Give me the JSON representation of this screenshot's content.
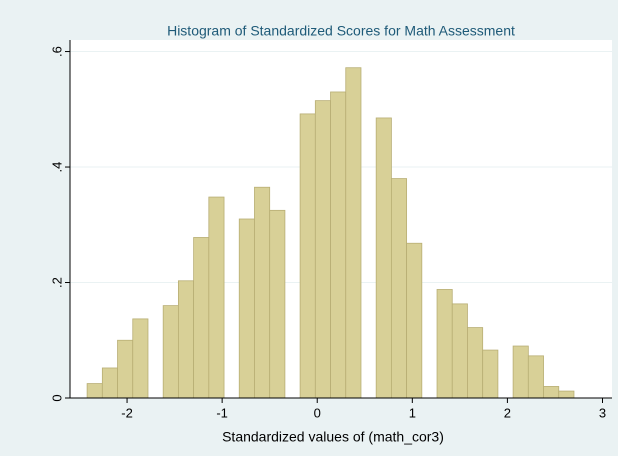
{
  "chart_data": {
    "type": "histogram",
    "title": "Histogram of Standardized Scores for Math Assessment",
    "x_label": "Standardized values of (math_cor3)",
    "bins": [
      -2.42,
      -2.26,
      -2.1,
      -1.94,
      -1.78,
      -1.62,
      -1.46,
      -1.3,
      -1.14,
      -0.98,
      -0.82,
      -0.66,
      -0.5,
      -0.34,
      -0.18,
      -0.02,
      0.14,
      0.3,
      0.46,
      0.62,
      0.78,
      0.94,
      1.1,
      1.26,
      1.42,
      1.58,
      1.74,
      1.9,
      2.06,
      2.22,
      2.38,
      2.54,
      2.7
    ],
    "values": [
      0.025,
      0.052,
      0.1,
      0.137,
      0,
      0.16,
      0.203,
      0.278,
      0.348,
      0,
      0.31,
      0.365,
      0.325,
      0,
      0.492,
      0.515,
      0.53,
      0.572,
      0,
      0.485,
      0.38,
      0.268,
      0,
      0.188,
      0.163,
      0.122,
      0.083,
      0,
      0.09,
      0.073,
      0.02,
      0.012
    ],
    "color": "#d8d097",
    "edge_color": "#b8ae74",
    "xlim": [
      -2.6,
      3.1
    ],
    "xticks": [
      -2,
      -1,
      0,
      1,
      2,
      3
    ],
    "ylim": [
      0,
      0.62
    ],
    "yticks": [
      0,
      {
        "value": 0.2,
        "label": ".2"
      },
      {
        "value": 0.4,
        "label": ".4"
      },
      {
        "value": 0.6,
        "label": ".6"
      }
    ],
    "grid": true
  }
}
